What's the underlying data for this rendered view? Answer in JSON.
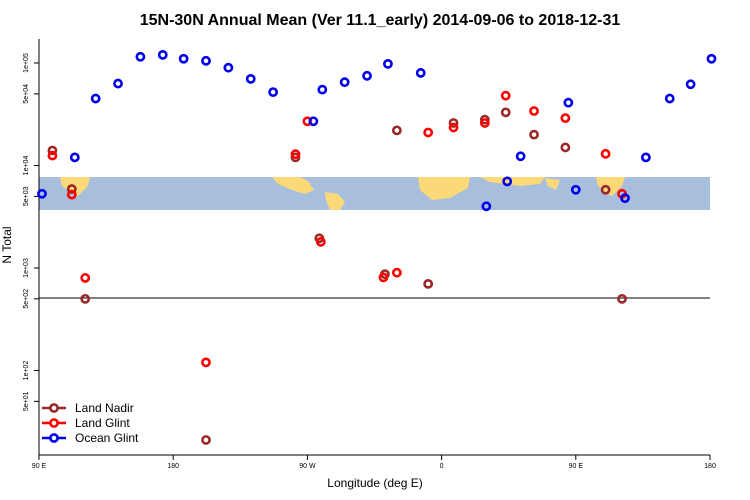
{
  "chart_data": {
    "type": "scatter",
    "title": "15N-30N Annual Mean (Ver 11.1_early)   2014-09-06 to 2018-12-31",
    "xlabel": "Longitude (deg E)",
    "ylabel": "N Total",
    "x_tick_labels": [
      "90 E",
      "180",
      "90 W",
      "0",
      "90 E",
      "180"
    ],
    "x_ticks": [
      90,
      180,
      270,
      360,
      450,
      540
    ],
    "xlim": [
      90,
      540
    ],
    "y_scale": "log",
    "y_tick_labels": [
      "1e+05",
      "5e+04",
      "1e+04",
      "5e+03",
      "1e+03",
      "5e+02",
      "1e+02",
      "5e+01"
    ],
    "y_ticks": [
      100000,
      50000,
      10000,
      5000,
      1000,
      500,
      100,
      50
    ],
    "legend_position": "bottom-left",
    "legend": [
      {
        "name": "Land Nadir",
        "color": "#9a2a2a"
      },
      {
        "name": "Land Glint",
        "color": "#ff0000"
      },
      {
        "name": "Ocean Glint",
        "color": "#0000ee"
      }
    ],
    "series": [
      {
        "name": "Land Nadir",
        "color": "#9a2a2a",
        "x": [
          99,
          112,
          121,
          202,
          262,
          278,
          322,
          330,
          351,
          368,
          389,
          403,
          422,
          443,
          470,
          481
        ],
        "y": [
          14000,
          5900,
          500,
          21,
          12000,
          1950,
          870,
          22000,
          700,
          26000,
          28000,
          33000,
          20000,
          15000,
          5800,
          500
        ]
      },
      {
        "name": "Land Glint",
        "color": "#ff0000",
        "x": [
          99,
          112,
          121,
          202,
          262,
          270,
          279,
          321,
          330,
          351,
          368,
          389,
          403,
          422,
          443,
          470,
          481
        ],
        "y": [
          12500,
          5200,
          800,
          120,
          12900,
          27000,
          1800,
          810,
          900,
          21000,
          23500,
          26000,
          48000,
          34000,
          29000,
          13000,
          5300
        ]
      },
      {
        "name": "Ocean Glint",
        "color": "#0000ee",
        "x": [
          92,
          114,
          128,
          143,
          158,
          173,
          187,
          202,
          217,
          232,
          247,
          274,
          280,
          295,
          310,
          324,
          346,
          390,
          404,
          413,
          445,
          450,
          483,
          497,
          513,
          527,
          541
        ],
        "y": [
          5300,
          12000,
          45000,
          63000,
          115000,
          120000,
          110000,
          105000,
          90000,
          70000,
          52000,
          27000,
          55000,
          65000,
          75000,
          98000,
          80000,
          4000,
          7000,
          12300,
          41000,
          5800,
          4800,
          12000,
          45000,
          62000,
          110000
        ]
      }
    ],
    "map_strip_colors": {
      "ocean": "#a7bfdc",
      "land": "#fbd978"
    }
  }
}
